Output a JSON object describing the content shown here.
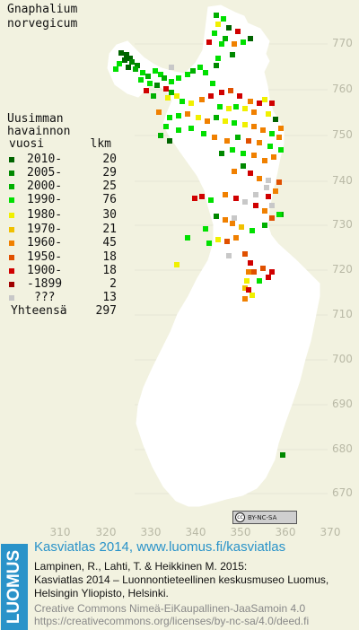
{
  "title": {
    "line1": "Gnaphalium",
    "line2": "norvegicum"
  },
  "legend": {
    "heading": [
      "Uusimman",
      "havainnon"
    ],
    "col_year": "vuosi",
    "col_count": "lkm",
    "rows": [
      {
        "label": "2010-",
        "count": "20",
        "color": "#006400"
      },
      {
        "label": "2005-",
        "count": "29",
        "color": "#008800"
      },
      {
        "label": "2000-",
        "count": "25",
        "color": "#00b000"
      },
      {
        "label": "1990-",
        "count": "76",
        "color": "#00e000"
      },
      {
        "label": "1980-",
        "count": "30",
        "color": "#f0f000"
      },
      {
        "label": "1970-",
        "count": "21",
        "color": "#f0c000"
      },
      {
        "label": "1960-",
        "count": "45",
        "color": "#f08000"
      },
      {
        "label": "1950-",
        "count": "18",
        "color": "#e05000"
      },
      {
        "label": "1900-",
        "count": "18",
        "color": "#d00000"
      },
      {
        "label": "-1899",
        "count": "2",
        "color": "#a00000"
      },
      {
        "label": "???",
        "count": "13",
        "color": "#c8c8c8"
      }
    ],
    "total_label": "Yhteensä",
    "total_count": "297"
  },
  "axes": {
    "y_ticks": [
      "770",
      "760",
      "750",
      "740",
      "730",
      "720",
      "710",
      "700",
      "690",
      "680",
      "670"
    ],
    "x_ticks": [
      "310",
      "320",
      "330",
      "340",
      "350",
      "360",
      "370"
    ]
  },
  "license_badge": "BY-NC-SA",
  "logo": "LUOMUS",
  "credits": {
    "line1": "Kasviatlas 2014, www.luomus.fi/kasviatlas",
    "line2": "Lampinen, R., Lahti, T. & Heikkinen M. 2015:",
    "line3": "Kasviatlas 2014 – Luonnontieteellinen keskusmuseo Luomus,",
    "line4": "Helsingin Yliopisto, Helsinki.",
    "line5": "Creative Commons Nimeä-EiKaupallinen-JaaSamoin 4.0",
    "line6": "https://creativecommons.org/licenses/by-nc-sa/4.0/deed.fi"
  },
  "colors": {
    "background": "#f2f2e0",
    "land": "#ffffff",
    "grid": "#b9b9a6",
    "accent": "#2a93c9"
  }
}
